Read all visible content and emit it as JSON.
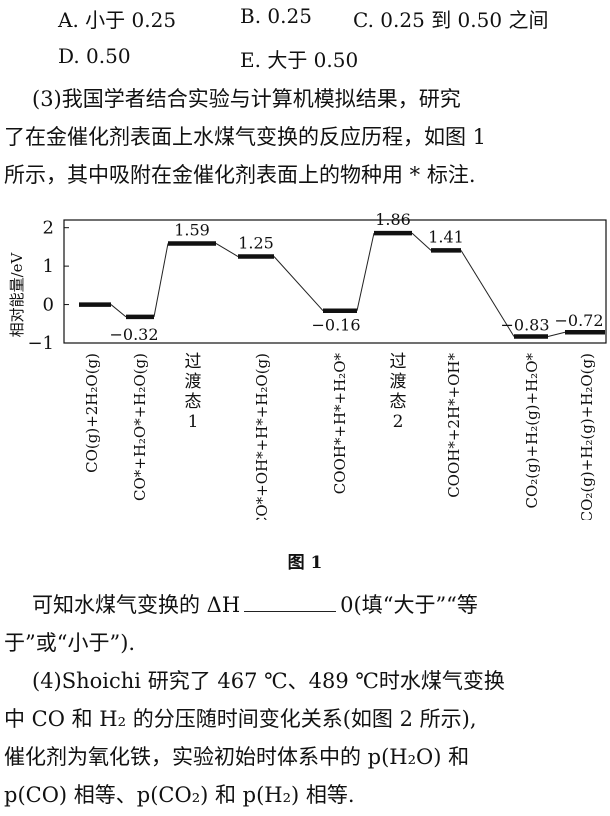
{
  "options": {
    "a": "A. 小于 0.25",
    "b": "B. 0.25",
    "c": "C. 0.25 到 0.50 之间",
    "d": "D. 0.50",
    "e": "E. 大于 0.50"
  },
  "q3": {
    "line1": "(3)我国学者结合实验与计算机模拟结果，研究",
    "line2": "了在金催化剂表面上水煤气变换的反应历程，如图 1",
    "line3": "所示，其中吸附在金催化剂表面上的物种用 * 标注."
  },
  "figure_caption": "图 1",
  "conclusion": {
    "part1": "可知水煤气变换的 ΔH",
    "part2": "0(填“大于”“等",
    "line2": "于”或“小于”)."
  },
  "q4": {
    "line1": "(4)Shoichi 研究了 467 ℃、489 ℃时水煤气变换",
    "line2": "中 CO 和 H₂ 的分压随时间变化关系(如图 2 所示),",
    "line3": "催化剂为氧化铁，实验初始时体系中的 p(H₂O) 和",
    "line4": "p(CO) 相等、p(CO₂) 和 p(H₂) 相等."
  },
  "chart_data": {
    "type": "line",
    "ylabel": "相对能量/eV",
    "ylim": [
      -1,
      2.2
    ],
    "yticks": [
      "2",
      "1",
      "0",
      "−1"
    ],
    "ytick_values": [
      2,
      1,
      0,
      -1
    ],
    "levels": [
      {
        "state": "CO(g)+2H₂O(g)",
        "energy": 0,
        "label": ""
      },
      {
        "state": "CO*+H₂O*+H₂O(g)",
        "energy": -0.32,
        "label": "−0.32"
      },
      {
        "state": "过渡态1",
        "energy": 1.59,
        "label": "1.59"
      },
      {
        "state": "CO*+OH*+H*+H₂O(g)",
        "energy": 1.25,
        "label": "1.25"
      },
      {
        "state": "COOH*+H*+H₂O*",
        "energy": -0.16,
        "label": "−0.16"
      },
      {
        "state": "过渡态2",
        "energy": 1.86,
        "label": "1.86"
      },
      {
        "state": "COOH*+2H*+OH*",
        "energy": 1.41,
        "label": "1.41"
      },
      {
        "state": "CO₂(g)+H₂(g)+H₂O*",
        "energy": -0.83,
        "label": "−0.83"
      },
      {
        "state": "CO₂(g)+H₂(g)+H₂O(g)",
        "energy": -0.72,
        "label": "−0.72"
      }
    ]
  }
}
